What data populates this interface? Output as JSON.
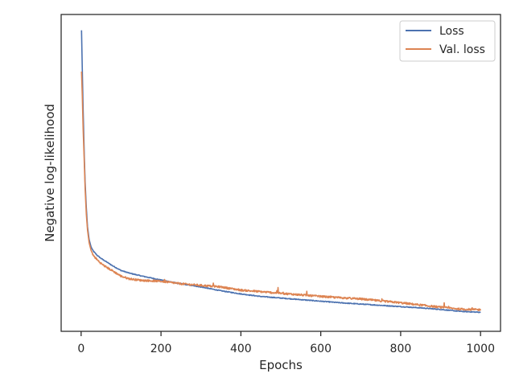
{
  "chart_data": {
    "type": "line",
    "title": "",
    "xlabel": "Epochs",
    "ylabel": "Negative log-likelihood",
    "xlim": [
      -50,
      1050
    ],
    "ylim": [
      0.0,
      1.0
    ],
    "y_tick_labels_shown": false,
    "x_ticks": [
      0,
      200,
      400,
      600,
      800,
      1000
    ],
    "x_tick_labels": [
      "0",
      "200",
      "400",
      "600",
      "800",
      "1000"
    ],
    "grid": false,
    "legend": {
      "placement": "top-right"
    },
    "series": [
      {
        "name": "Loss",
        "color": "#4c72b0",
        "points": [
          [
            1,
            0.95
          ],
          [
            3,
            0.82
          ],
          [
            5,
            0.7
          ],
          [
            8,
            0.55
          ],
          [
            10,
            0.47
          ],
          [
            13,
            0.39
          ],
          [
            16,
            0.33
          ],
          [
            20,
            0.29
          ],
          [
            25,
            0.266
          ],
          [
            30,
            0.254
          ],
          [
            40,
            0.24
          ],
          [
            50,
            0.23
          ],
          [
            60,
            0.222
          ],
          [
            80,
            0.206
          ],
          [
            100,
            0.192
          ],
          [
            120,
            0.184
          ],
          [
            150,
            0.175
          ],
          [
            200,
            0.162
          ],
          [
            250,
            0.15
          ],
          [
            300,
            0.14
          ],
          [
            350,
            0.128
          ],
          [
            400,
            0.118
          ],
          [
            450,
            0.11
          ],
          [
            500,
            0.105
          ],
          [
            550,
            0.1
          ],
          [
            600,
            0.095
          ],
          [
            650,
            0.09
          ],
          [
            700,
            0.086
          ],
          [
            750,
            0.082
          ],
          [
            800,
            0.078
          ],
          [
            850,
            0.074
          ],
          [
            900,
            0.069
          ],
          [
            950,
            0.063
          ],
          [
            1000,
            0.06
          ]
        ]
      },
      {
        "name": "Val. loss",
        "color": "#dd8452",
        "points": [
          [
            1,
            0.82
          ],
          [
            3,
            0.74
          ],
          [
            5,
            0.64
          ],
          [
            8,
            0.53
          ],
          [
            10,
            0.45
          ],
          [
            13,
            0.37
          ],
          [
            16,
            0.32
          ],
          [
            20,
            0.28
          ],
          [
            25,
            0.255
          ],
          [
            30,
            0.24
          ],
          [
            40,
            0.226
          ],
          [
            50,
            0.214
          ],
          [
            60,
            0.205
          ],
          [
            80,
            0.19
          ],
          [
            100,
            0.174
          ],
          [
            120,
            0.166
          ],
          [
            150,
            0.161
          ],
          [
            200,
            0.158
          ],
          [
            250,
            0.15
          ],
          [
            300,
            0.145
          ],
          [
            350,
            0.14
          ],
          [
            400,
            0.13
          ],
          [
            450,
            0.125
          ],
          [
            500,
            0.12
          ],
          [
            550,
            0.115
          ],
          [
            600,
            0.11
          ],
          [
            650,
            0.106
          ],
          [
            700,
            0.102
          ],
          [
            750,
            0.096
          ],
          [
            800,
            0.09
          ],
          [
            850,
            0.083
          ],
          [
            900,
            0.076
          ],
          [
            950,
            0.07
          ],
          [
            1000,
            0.068
          ]
        ]
      }
    ]
  }
}
